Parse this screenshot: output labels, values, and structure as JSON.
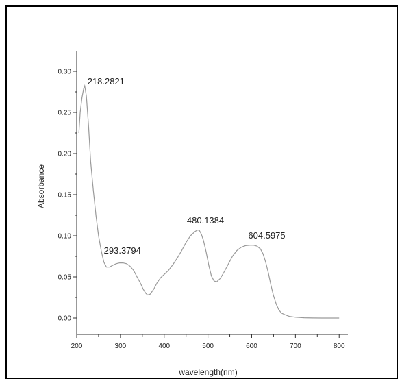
{
  "chart_data": {
    "type": "line",
    "xlabel": "wavelength(nm)",
    "ylabel": "Absorbance",
    "xlim": [
      200,
      820
    ],
    "ylim": [
      -0.02,
      0.325
    ],
    "grid": false,
    "x_ticks": [
      "200",
      "300",
      "400",
      "500",
      "600",
      "700",
      "800"
    ],
    "y_ticks": [
      "0.00",
      "0.05",
      "0.10",
      "0.15",
      "0.20",
      "0.25",
      "0.30"
    ],
    "series": [
      {
        "x": [
          205,
          208,
          212,
          216,
          218.3,
          222,
          227,
          232,
          238,
          244,
          250,
          256,
          262,
          268,
          275,
          282,
          290,
          298,
          306,
          314,
          322,
          330,
          338,
          346,
          352,
          358,
          362,
          368,
          376,
          384,
          392,
          400,
          410,
          420,
          430,
          440,
          450,
          460,
          470,
          476,
          480.1,
          485,
          490,
          496,
          502,
          508,
          514,
          520,
          528,
          536,
          546,
          556,
          566,
          576,
          586,
          596,
          604.6,
          612,
          620,
          626,
          632,
          638,
          644,
          650,
          656,
          662,
          668,
          676,
          686,
          700,
          720,
          740,
          760,
          780,
          800
        ],
        "y": [
          0.225,
          0.25,
          0.268,
          0.279,
          0.2823,
          0.27,
          0.235,
          0.19,
          0.155,
          0.125,
          0.1,
          0.082,
          0.068,
          0.062,
          0.062,
          0.064,
          0.066,
          0.067,
          0.067,
          0.066,
          0.063,
          0.058,
          0.05,
          0.042,
          0.035,
          0.03,
          0.028,
          0.029,
          0.035,
          0.043,
          0.049,
          0.053,
          0.058,
          0.065,
          0.073,
          0.082,
          0.092,
          0.1,
          0.105,
          0.107,
          0.1068,
          0.102,
          0.094,
          0.08,
          0.064,
          0.051,
          0.045,
          0.044,
          0.048,
          0.055,
          0.065,
          0.075,
          0.082,
          0.086,
          0.088,
          0.0885,
          0.0885,
          0.0875,
          0.084,
          0.078,
          0.068,
          0.055,
          0.04,
          0.027,
          0.017,
          0.01,
          0.006,
          0.004,
          0.002,
          0.001,
          0.0003,
          0.0001,
          0.0,
          0.0,
          0.0
        ]
      }
    ],
    "annotations": [
      {
        "text": "218.2821",
        "x": 218.3,
        "y": 0.2823
      },
      {
        "text": "293.3794",
        "x": 293.4,
        "y": 0.0667
      },
      {
        "text": "480.1384",
        "x": 480.1,
        "y": 0.1068
      },
      {
        "text": "604.5975",
        "x": 604.6,
        "y": 0.0885
      }
    ]
  },
  "colors": {
    "line": "#9a9a9a",
    "axis": "#333333",
    "text": "#222222",
    "frame": "#000000"
  }
}
